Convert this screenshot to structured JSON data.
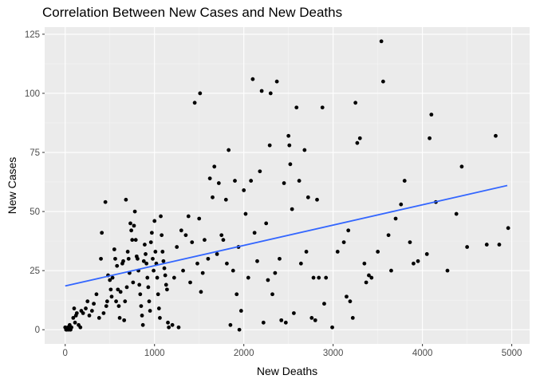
{
  "chart_data": {
    "type": "scatter",
    "title": "Correlation Between New Cases and New Deaths",
    "xlabel": "New Deaths",
    "ylabel": "New Cases",
    "xlim": [
      -230,
      5200
    ],
    "ylim": [
      -6,
      128
    ],
    "xticks": [
      0,
      1000,
      2000,
      3000,
      4000,
      5000
    ],
    "yticks": [
      0,
      25,
      50,
      75,
      100,
      125
    ],
    "grid": true,
    "legend": "none",
    "colors": {
      "panel": "#ebebeb",
      "grid_major": "#ffffff",
      "point": "#000000",
      "trend": "#3366ff"
    },
    "trend_line": {
      "x": [
        0,
        4950
      ],
      "y": [
        18.5,
        61
      ]
    },
    "points": [
      [
        0,
        1
      ],
      [
        10,
        0
      ],
      [
        20,
        0
      ],
      [
        30,
        1
      ],
      [
        40,
        0
      ],
      [
        50,
        2
      ],
      [
        60,
        0
      ],
      [
        70,
        1
      ],
      [
        90,
        5
      ],
      [
        100,
        9
      ],
      [
        110,
        3
      ],
      [
        120,
        6
      ],
      [
        130,
        7
      ],
      [
        150,
        2
      ],
      [
        170,
        1
      ],
      [
        180,
        8
      ],
      [
        200,
        7
      ],
      [
        230,
        9
      ],
      [
        250,
        12
      ],
      [
        270,
        6
      ],
      [
        300,
        8
      ],
      [
        320,
        11
      ],
      [
        350,
        15
      ],
      [
        380,
        5
      ],
      [
        400,
        30
      ],
      [
        410,
        41
      ],
      [
        430,
        7
      ],
      [
        450,
        54
      ],
      [
        460,
        10
      ],
      [
        470,
        12
      ],
      [
        480,
        23
      ],
      [
        500,
        21
      ],
      [
        510,
        17
      ],
      [
        520,
        14
      ],
      [
        530,
        22
      ],
      [
        550,
        34
      ],
      [
        560,
        30
      ],
      [
        570,
        12
      ],
      [
        580,
        27
      ],
      [
        590,
        17
      ],
      [
        600,
        10
      ],
      [
        610,
        5
      ],
      [
        620,
        16
      ],
      [
        640,
        28
      ],
      [
        650,
        29
      ],
      [
        660,
        4
      ],
      [
        670,
        12
      ],
      [
        680,
        55
      ],
      [
        690,
        18
      ],
      [
        700,
        33
      ],
      [
        710,
        30
      ],
      [
        720,
        24
      ],
      [
        730,
        45
      ],
      [
        740,
        42
      ],
      [
        750,
        38
      ],
      [
        760,
        20
      ],
      [
        770,
        44
      ],
      [
        780,
        50
      ],
      [
        790,
        38
      ],
      [
        800,
        31
      ],
      [
        810,
        30
      ],
      [
        820,
        25
      ],
      [
        830,
        19
      ],
      [
        840,
        15
      ],
      [
        850,
        10
      ],
      [
        860,
        6
      ],
      [
        870,
        2
      ],
      [
        880,
        29
      ],
      [
        890,
        36
      ],
      [
        900,
        32
      ],
      [
        910,
        28
      ],
      [
        920,
        22
      ],
      [
        930,
        18
      ],
      [
        940,
        12
      ],
      [
        950,
        8
      ],
      [
        960,
        37
      ],
      [
        970,
        41
      ],
      [
        980,
        30
      ],
      [
        990,
        25
      ],
      [
        1000,
        46
      ],
      [
        1010,
        33
      ],
      [
        1020,
        28
      ],
      [
        1030,
        22
      ],
      [
        1040,
        15
      ],
      [
        1050,
        9
      ],
      [
        1060,
        5
      ],
      [
        1070,
        48
      ],
      [
        1080,
        40
      ],
      [
        1090,
        33
      ],
      [
        1100,
        29
      ],
      [
        1110,
        26
      ],
      [
        1120,
        23
      ],
      [
        1130,
        19
      ],
      [
        1140,
        17
      ],
      [
        1150,
        3
      ],
      [
        1160,
        1
      ],
      [
        1200,
        2
      ],
      [
        1220,
        22
      ],
      [
        1250,
        35
      ],
      [
        1270,
        1
      ],
      [
        1300,
        42
      ],
      [
        1320,
        25
      ],
      [
        1350,
        40
      ],
      [
        1380,
        48
      ],
      [
        1400,
        20
      ],
      [
        1420,
        37
      ],
      [
        1450,
        96
      ],
      [
        1480,
        28
      ],
      [
        1500,
        47
      ],
      [
        1510,
        100
      ],
      [
        1520,
        16
      ],
      [
        1540,
        24
      ],
      [
        1560,
        38
      ],
      [
        1600,
        30
      ],
      [
        1620,
        64
      ],
      [
        1650,
        56
      ],
      [
        1670,
        69
      ],
      [
        1700,
        32
      ],
      [
        1720,
        62
      ],
      [
        1750,
        40
      ],
      [
        1770,
        38
      ],
      [
        1800,
        55
      ],
      [
        1810,
        28
      ],
      [
        1830,
        76
      ],
      [
        1850,
        2
      ],
      [
        1880,
        25
      ],
      [
        1900,
        63
      ],
      [
        1920,
        15
      ],
      [
        1940,
        35
      ],
      [
        1950,
        0
      ],
      [
        1970,
        8
      ],
      [
        2000,
        59
      ],
      [
        2020,
        49
      ],
      [
        2050,
        22
      ],
      [
        2080,
        63
      ],
      [
        2100,
        106
      ],
      [
        2120,
        41
      ],
      [
        2150,
        29
      ],
      [
        2180,
        67
      ],
      [
        2200,
        101
      ],
      [
        2220,
        3
      ],
      [
        2250,
        45
      ],
      [
        2270,
        21
      ],
      [
        2290,
        78
      ],
      [
        2300,
        100
      ],
      [
        2320,
        15
      ],
      [
        2350,
        24
      ],
      [
        2370,
        105
      ],
      [
        2400,
        30
      ],
      [
        2420,
        4
      ],
      [
        2450,
        62
      ],
      [
        2470,
        3
      ],
      [
        2500,
        82
      ],
      [
        2510,
        78
      ],
      [
        2520,
        70
      ],
      [
        2540,
        51
      ],
      [
        2560,
        7
      ],
      [
        2590,
        94
      ],
      [
        2620,
        63
      ],
      [
        2640,
        28
      ],
      [
        2680,
        76
      ],
      [
        2700,
        33
      ],
      [
        2720,
        56
      ],
      [
        2760,
        5
      ],
      [
        2780,
        22
      ],
      [
        2800,
        4
      ],
      [
        2820,
        55
      ],
      [
        2840,
        22
      ],
      [
        2880,
        94
      ],
      [
        2900,
        11
      ],
      [
        2920,
        22
      ],
      [
        2990,
        1
      ],
      [
        3050,
        33
      ],
      [
        3120,
        37
      ],
      [
        3150,
        14
      ],
      [
        3170,
        42
      ],
      [
        3190,
        12
      ],
      [
        3220,
        5
      ],
      [
        3250,
        96
      ],
      [
        3270,
        79
      ],
      [
        3300,
        81
      ],
      [
        3350,
        28
      ],
      [
        3370,
        20
      ],
      [
        3400,
        23
      ],
      [
        3430,
        22
      ],
      [
        3500,
        33
      ],
      [
        3540,
        122
      ],
      [
        3560,
        105
      ],
      [
        3620,
        40
      ],
      [
        3650,
        25
      ],
      [
        3700,
        47
      ],
      [
        3760,
        53
      ],
      [
        3800,
        63
      ],
      [
        3860,
        37
      ],
      [
        3900,
        28
      ],
      [
        3950,
        29
      ],
      [
        4050,
        32
      ],
      [
        4080,
        81
      ],
      [
        4100,
        91
      ],
      [
        4150,
        54
      ],
      [
        4280,
        25
      ],
      [
        4380,
        49
      ],
      [
        4440,
        69
      ],
      [
        4500,
        35
      ],
      [
        4720,
        36
      ],
      [
        4820,
        82
      ],
      [
        4860,
        36
      ],
      [
        4960,
        43
      ]
    ]
  }
}
